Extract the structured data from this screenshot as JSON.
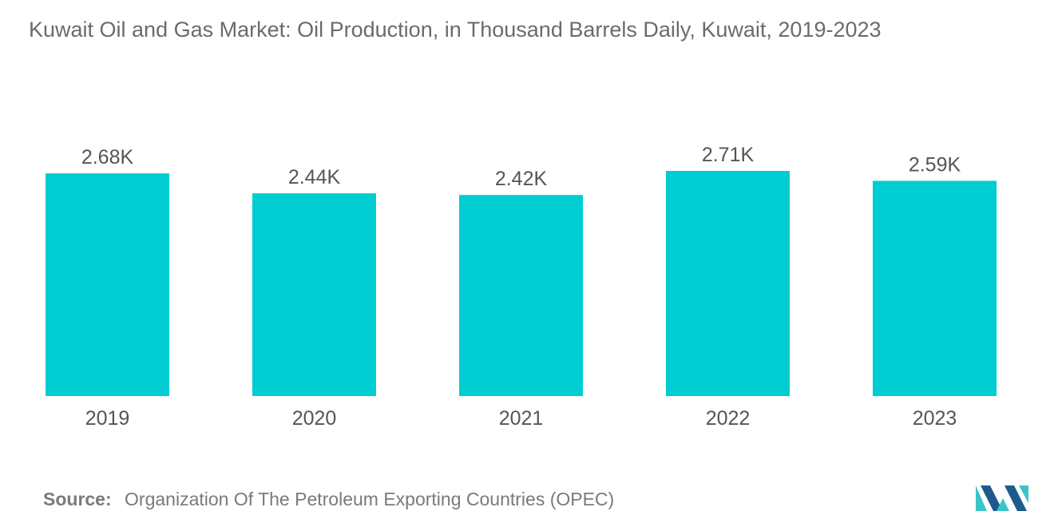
{
  "title": "Kuwait Oil and Gas Market: Oil Production, in Thousand Barrels Daily, Kuwait, 2019-2023",
  "source": {
    "label": "Source:",
    "text": "Organization Of The Petroleum Exporting Countries (OPEC)"
  },
  "logo_icon": "mordor-intelligence-logo-icon",
  "colors": {
    "bar": "#00CDD1",
    "logo_dark": "#1E5A8C",
    "logo_light": "#3BC4C8",
    "text": "#555555"
  },
  "chart_data": {
    "type": "bar",
    "categories": [
      "2019",
      "2020",
      "2021",
      "2022",
      "2023"
    ],
    "values": [
      2680,
      2440,
      2420,
      2710,
      2590
    ],
    "data_labels": [
      "2.68K",
      "2.44K",
      "2.42K",
      "2.71K",
      "2.59K"
    ],
    "title": "Kuwait Oil and Gas Market: Oil Production, in Thousand Barrels Daily, Kuwait, 2019-2023",
    "xlabel": "",
    "ylabel": "",
    "ylim": [
      0,
      2710
    ],
    "grid": false,
    "legend": "none"
  }
}
